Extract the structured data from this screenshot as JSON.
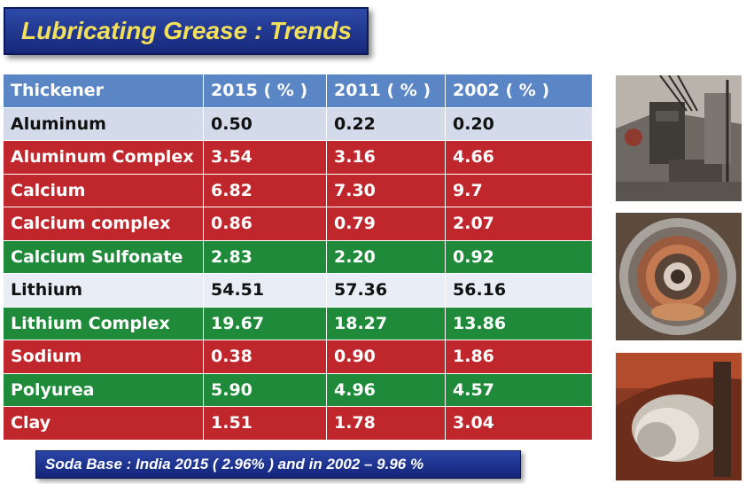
{
  "title": "Lubricating Grease : Trends",
  "table": {
    "headers": [
      "Thickener",
      "2015  ( % )",
      "2011 ( % )",
      "2002 ( % )"
    ],
    "rows": [
      [
        "Aluminum",
        "0.50",
        "0.22",
        "0.20"
      ],
      [
        "Aluminum Complex",
        "3.54",
        "3.16",
        "4.66"
      ],
      [
        "Calcium",
        "6.82",
        "7.30",
        "9.7"
      ],
      [
        "Calcium complex",
        "0.86",
        "0.79",
        "2.07"
      ],
      [
        "Calcium Sulfonate",
        "2.83",
        "2.20",
        "0.92"
      ],
      [
        "Lithium",
        "54.51",
        "57.36",
        "56.16"
      ],
      [
        "Lithium Complex",
        "19.67",
        "18.27",
        "13.86"
      ],
      [
        "Sodium",
        "0.38",
        "0.90",
        "1.86"
      ],
      [
        "Polyurea",
        "5.90",
        "4.96",
        "4.57"
      ],
      [
        "Clay",
        "1.51",
        "1.78",
        "3.04"
      ]
    ],
    "row_colors": [
      "#d3dbea",
      "#c0272d",
      "#c0272d",
      "#c0272d",
      "#1e8a3a",
      "#e9edf5",
      "#1e8a3a",
      "#c0272d",
      "#1e8a3a",
      "#c0272d"
    ]
  },
  "footer": "Soda Base : India 2015 ( 2.96% ) and in 2002 – 9.96 %",
  "colors": {
    "title_bg": "#1f3591",
    "title_text": "#f3e05a",
    "header_bg": "#5b86c6",
    "red": "#c0272d",
    "green": "#1e8a3a",
    "light": "#d3dbea"
  },
  "photos": [
    "mining-machinery-photo",
    "bearing-housing-photo",
    "shaft-journal-photo"
  ]
}
